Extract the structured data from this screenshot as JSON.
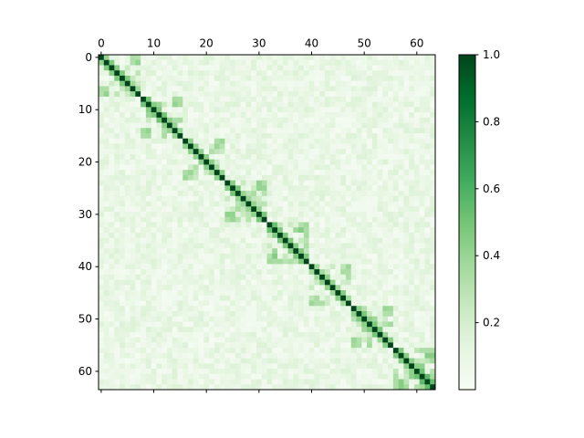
{
  "chart_data": {
    "type": "heatmap",
    "title": "",
    "xlabel": "",
    "ylabel": "",
    "size": 64,
    "colormap": "Greens",
    "colormap_stops": [
      "#f7fcf5",
      "#e5f5e0",
      "#c7e9c0",
      "#a1d99b",
      "#74c476",
      "#41ab5d",
      "#238b45",
      "#006d2c",
      "#00441b"
    ],
    "value_range": [
      0,
      1
    ],
    "x_ticks": [
      0,
      10,
      20,
      30,
      40,
      50,
      60
    ],
    "x_tick_labels": [
      "0",
      "10",
      "20",
      "30",
      "40",
      "50",
      "60"
    ],
    "y_ticks": [
      0,
      10,
      20,
      30,
      40,
      50,
      60
    ],
    "y_tick_labels": [
      "0",
      "10",
      "20",
      "30",
      "40",
      "50",
      "60"
    ],
    "x_axis_position": "top",
    "colorbar": {
      "position": "right",
      "range": [
        0,
        1
      ],
      "ticks": [
        0.2,
        0.4,
        0.6,
        0.8,
        1.0
      ],
      "tick_labels": [
        "0.2",
        "0.4",
        "0.6",
        "0.8",
        "1.0"
      ]
    },
    "diagonal_value": 1.0,
    "blocks": [
      {
        "start": 0,
        "end": 8,
        "peak": 0.42
      },
      {
        "start": 8,
        "end": 16,
        "peak": 0.45
      },
      {
        "start": 16,
        "end": 24,
        "peak": 0.4
      },
      {
        "start": 24,
        "end": 32,
        "peak": 0.44
      },
      {
        "start": 32,
        "end": 40,
        "peak": 0.46
      },
      {
        "start": 40,
        "end": 48,
        "peak": 0.4
      },
      {
        "start": 48,
        "end": 56,
        "peak": 0.43
      },
      {
        "start": 56,
        "end": 64,
        "peak": 0.48
      }
    ],
    "background_range": [
      0.02,
      0.16
    ]
  }
}
